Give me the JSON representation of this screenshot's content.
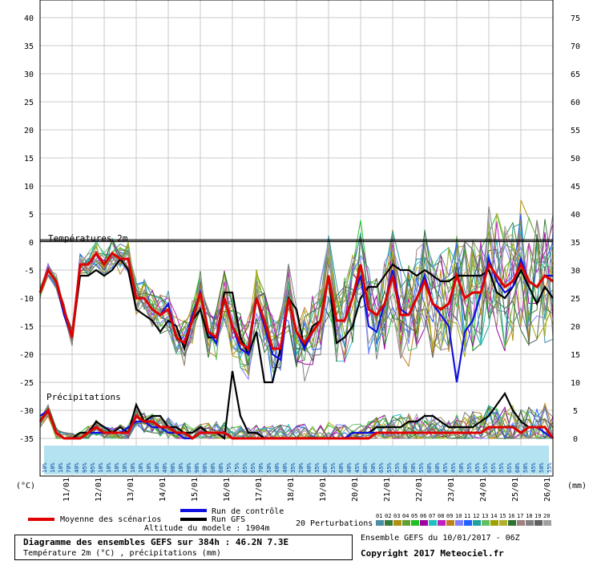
{
  "chart_data": {
    "type": "line",
    "title": "Diagramme des ensembles GEFS sur 384h : 46.2N 7.3E",
    "subtitle": "Température 2m (°C) , précipitations (mm)",
    "altitude": "Altitude du modele : 1904m",
    "run_info": "Ensemble GEFS du 10/01/2017 - 06Z",
    "copyright": "Copyright 2017 Meteociel.fr",
    "left_unit": "(°C)",
    "right_unit": "(mm)",
    "temp_panel_label": "Températures 2m",
    "precip_panel_label": "Précipitations",
    "left_ticks": [
      "40",
      "35",
      "30",
      "25",
      "20",
      "15",
      "10",
      "5",
      "0",
      "-5",
      "-10",
      "-15",
      "-20",
      "-25",
      "-30",
      "-35"
    ],
    "right_ticks": [
      "75",
      "70",
      "65",
      "60",
      "55",
      "50",
      "45",
      "40",
      "35",
      "30",
      "25",
      "20",
      "15",
      "10",
      "5",
      "0"
    ],
    "x_labels": [
      "11/01",
      "12/01",
      "13/01",
      "14/01",
      "15/01",
      "16/01",
      "17/01",
      "18/01",
      "19/01",
      "20/01",
      "21/01",
      "22/01",
      "23/01",
      "24/01",
      "25/01",
      "26/01"
    ],
    "x_range_steps": 64,
    "temp_ylim": [
      -35,
      40
    ],
    "precip_ylim": [
      0,
      75
    ],
    "rain_probabilities": [
      "10%",
      "10%",
      "10%",
      "70%",
      "40%",
      "95%",
      "95%",
      "10%",
      "10%",
      "10%",
      "10%",
      "10%",
      "10%",
      "10%",
      "10%",
      "40%",
      "90%",
      "10%",
      "90%",
      "90%",
      "90%",
      "60%",
      "60%",
      "75%",
      "75%",
      "65%",
      "65%",
      "70%",
      "50%",
      "40%",
      "40%",
      "35%",
      "20%",
      "40%",
      "35%",
      "60%",
      "25%",
      "60%",
      "40%",
      "45%",
      "60%",
      "50%",
      "65%",
      "55%",
      "55%",
      "60%",
      "50%",
      "55%",
      "60%",
      "60%",
      "45%",
      "45%",
      "50%",
      "55%",
      "45%",
      "55%",
      "65%",
      "55%",
      "65%",
      "60%",
      "50%",
      "45%",
      "50%",
      "55%",
      "55%"
    ],
    "series": [
      {
        "name": "Moyenne des scénarios",
        "color": "#e00000",
        "temp": [
          -9,
          -5,
          -7,
          -12,
          -17,
          -4,
          -4,
          -2,
          -4,
          -2,
          -3,
          -3,
          -10,
          -10,
          -12,
          -13,
          -12,
          -17,
          -18,
          -14,
          -9,
          -16,
          -17,
          -10,
          -15,
          -18,
          -19,
          -10,
          -14,
          -19,
          -19,
          -10,
          -16,
          -18,
          -16,
          -14,
          -6,
          -14,
          -14,
          -10,
          -4,
          -12,
          -13,
          -11,
          -6,
          -13,
          -13,
          -10,
          -7,
          -11,
          -12,
          -11,
          -6,
          -10,
          -9,
          -9,
          -4,
          -6,
          -8,
          -7,
          -4,
          -7,
          -8,
          -6,
          -7
        ],
        "precip": [
          3,
          5,
          1,
          0,
          0,
          0,
          1,
          2,
          1,
          1,
          1,
          1,
          4,
          3,
          3,
          2,
          2,
          1,
          1,
          0,
          1,
          1,
          1,
          1,
          0,
          0,
          0,
          0,
          0,
          0,
          0,
          0,
          0,
          0,
          0,
          0,
          0,
          0,
          0,
          0,
          0,
          0,
          1,
          1,
          1,
          1,
          1,
          1,
          1,
          1,
          1,
          1,
          1,
          1,
          1,
          1,
          2,
          2,
          2,
          2,
          1,
          2,
          2,
          2,
          0
        ]
      },
      {
        "name": "Run de contrôle",
        "color": "#1010e0",
        "temp": [
          -9,
          -5,
          -7,
          -13,
          -17,
          -4,
          -4,
          -2,
          -4,
          -2,
          -3,
          -3,
          -10,
          -10,
          -12,
          -13,
          -11,
          -17,
          -18,
          -13,
          -9,
          -16,
          -18,
          -10,
          -15,
          -19,
          -20,
          -10,
          -15,
          -20,
          -21,
          -10,
          -16,
          -19,
          -16,
          -14,
          -6,
          -14,
          -14,
          -10,
          -6,
          -15,
          -16,
          -11,
          -5,
          -12,
          -13,
          -10,
          -6,
          -11,
          -13,
          -15,
          -25,
          -16,
          -14,
          -9,
          -3,
          -7,
          -9,
          -8,
          -3,
          -7,
          -8,
          -6,
          -6
        ],
        "precip": [
          4,
          5,
          1,
          0,
          0,
          0,
          1,
          1,
          1,
          1,
          1,
          2,
          3,
          3,
          2,
          2,
          1,
          1,
          0,
          0,
          1,
          1,
          1,
          1,
          0,
          0,
          0,
          0,
          0,
          0,
          0,
          0,
          0,
          0,
          0,
          0,
          0,
          0,
          0,
          1,
          1,
          1,
          1,
          1,
          1,
          1,
          1,
          1,
          1,
          1,
          1,
          1,
          1,
          1,
          1,
          1,
          2,
          2,
          2,
          2,
          1,
          2,
          2,
          1,
          0
        ]
      },
      {
        "name": "Run GFS",
        "color": "#000000",
        "temp": [
          -9,
          -5,
          -7,
          -13,
          -17,
          -6,
          -6,
          -5,
          -6,
          -5,
          -3,
          -5,
          -12,
          -13,
          -14,
          -16,
          -14,
          -15,
          -19,
          -14,
          -12,
          -17,
          -17,
          -9,
          -9,
          -17,
          -20,
          -16,
          -25,
          -25,
          -19,
          -10,
          -12,
          -19,
          -15,
          -14,
          -6,
          -18,
          -17,
          -15,
          -10,
          -8,
          -8,
          -6,
          -4,
          -5,
          -5,
          -6,
          -5,
          -6,
          -7,
          -7,
          -6,
          -6,
          -6,
          -6,
          -5,
          -9,
          -10,
          -8,
          -5,
          -8,
          -11,
          -8,
          -10
        ],
        "precip": [
          3,
          5,
          1,
          0,
          0,
          1,
          1,
          3,
          2,
          1,
          2,
          1,
          6,
          3,
          4,
          4,
          2,
          2,
          1,
          1,
          2,
          1,
          1,
          0,
          12,
          4,
          1,
          1,
          0,
          0,
          0,
          0,
          0,
          0,
          0,
          0,
          0,
          0,
          0,
          1,
          1,
          1,
          2,
          2,
          2,
          2,
          3,
          3,
          4,
          4,
          3,
          2,
          2,
          2,
          2,
          3,
          4,
          6,
          8,
          5,
          3,
          2,
          2,
          2,
          0
        ]
      }
    ],
    "perturbations_label": "20 Perturbations",
    "perturbation_ids": [
      "01",
      "02",
      "03",
      "04",
      "05",
      "06",
      "07",
      "08",
      "09",
      "10",
      "11",
      "12",
      "13",
      "14",
      "15",
      "16",
      "17",
      "18",
      "19",
      "20"
    ],
    "perturbation_colors": [
      "#4a90a4",
      "#3a7a3a",
      "#b09010",
      "#60a030",
      "#20c020",
      "#a000a0",
      "#20c0c0",
      "#c020c0",
      "#c08020",
      "#8080ff",
      "#2060ff",
      "#20a0a0",
      "#60c060",
      "#a0a000",
      "#b0b030",
      "#307030",
      "#a08080",
      "#808080",
      "#606060",
      "#a0a0a0"
    ]
  },
  "legend": {
    "mean_label": "Moyenne des scénarios",
    "control_label": "Run de contrôle",
    "gfs_label": "Run GFS"
  }
}
